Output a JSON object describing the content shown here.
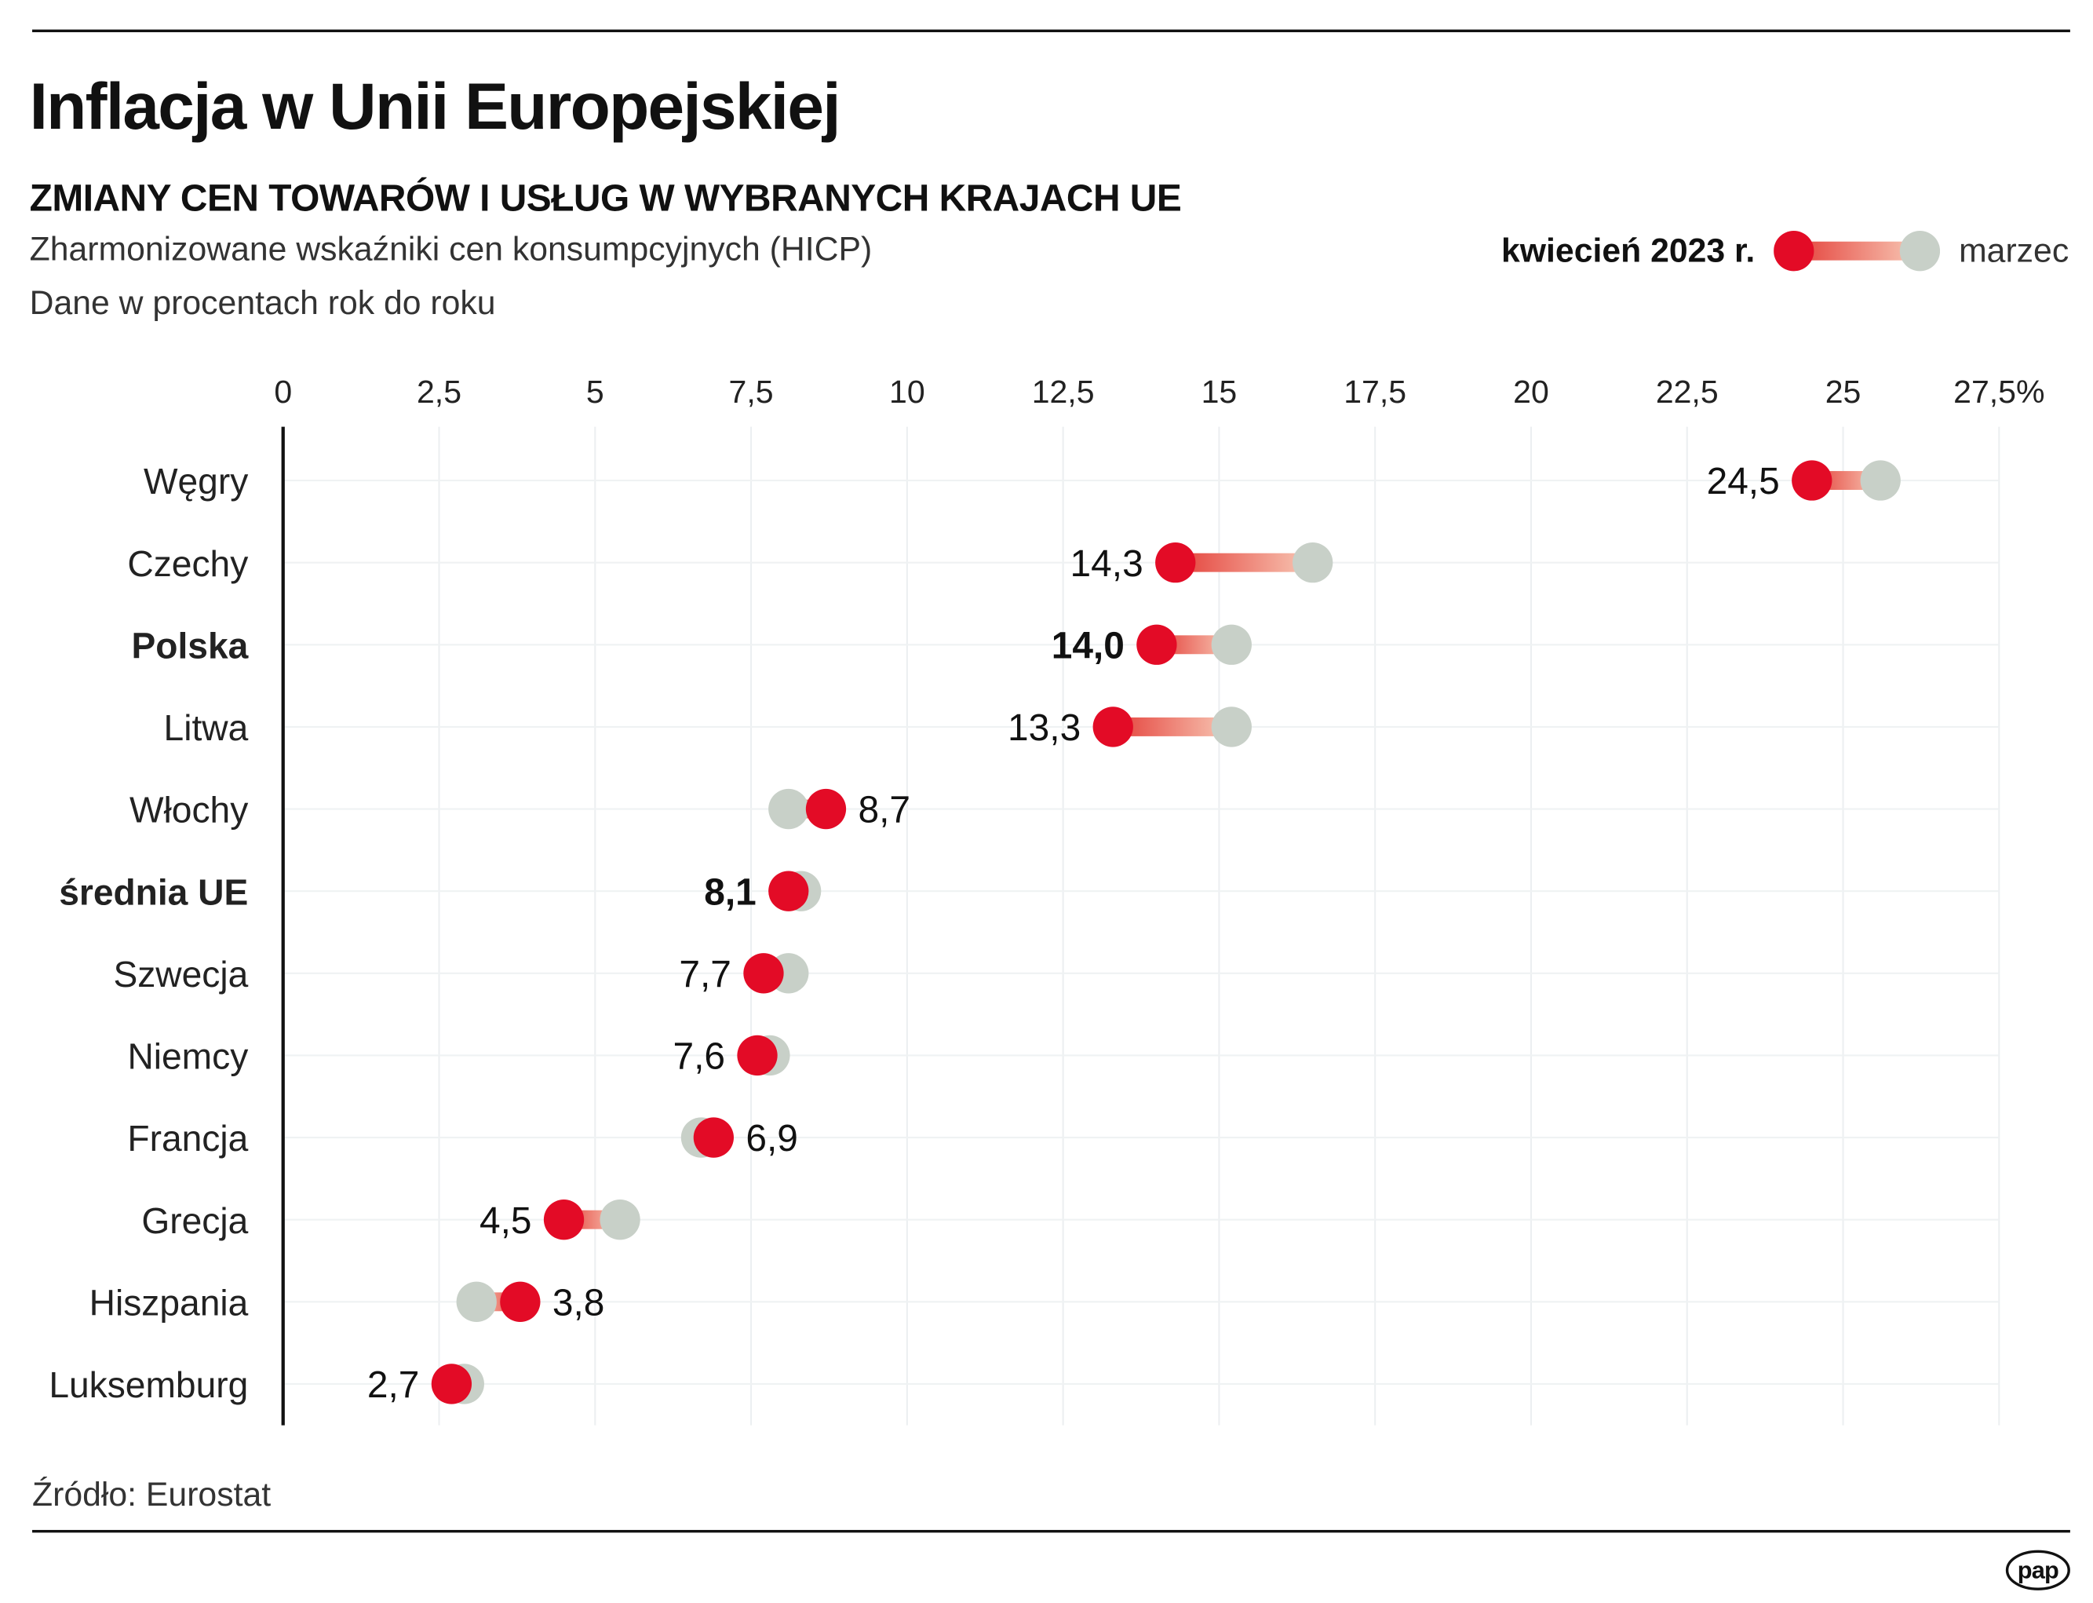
{
  "title": "Inflacja w Unii Europejskiej",
  "subtitle": "ZMIANY CEN TOWARÓW I USŁUG W WYBRANYCH KRAJACH UE",
  "description": [
    "Zharmonizowane wskaźniki cen konsumpcyjnych (HICP)",
    "Dane w procentach rok do roku"
  ],
  "legend": {
    "current": "kwiecień 2023 r.",
    "previous": "marzec"
  },
  "source": "Źródło: Eurostat",
  "logo_text": "pap",
  "colors": {
    "current": "#e30b26",
    "previous": "#c8d0c8",
    "connector_start": "#e4403a",
    "connector_end": "#f8c9b6"
  },
  "chart_data": {
    "type": "dumbbell",
    "xlim": [
      0,
      27.5
    ],
    "xticks": [
      "0",
      "2,5",
      "5",
      "7,5",
      "10",
      "12,5",
      "15",
      "17,5",
      "20",
      "22,5",
      "25",
      "27,5%"
    ],
    "xtick_values": [
      0,
      2.5,
      5,
      7.5,
      10,
      12.5,
      15,
      17.5,
      20,
      22.5,
      25,
      27.5
    ],
    "grid": true,
    "categories": [
      "Węgry",
      "Czechy",
      "Polska",
      "Litwa",
      "Włochy",
      "średnia UE",
      "Szwecja",
      "Niemcy",
      "Francja",
      "Grecja",
      "Hiszpania",
      "Luksemburg"
    ],
    "bold_categories": [
      "Polska",
      "średnia UE"
    ],
    "series": [
      {
        "name": "kwiecień 2023 r.",
        "values": [
          24.5,
          14.3,
          14.0,
          13.3,
          8.7,
          8.1,
          7.7,
          7.6,
          6.9,
          4.5,
          3.8,
          2.7
        ],
        "labels": [
          "24,5",
          "14,3",
          "14,0",
          "13,3",
          "8,7",
          "8,1",
          "7,7",
          "7,6",
          "6,9",
          "4,5",
          "3,8",
          "2,7"
        ]
      },
      {
        "name": "marzec",
        "values": [
          25.6,
          16.5,
          15.2,
          15.2,
          8.1,
          8.3,
          8.1,
          7.8,
          6.7,
          5.4,
          3.1,
          2.9
        ]
      }
    ]
  }
}
